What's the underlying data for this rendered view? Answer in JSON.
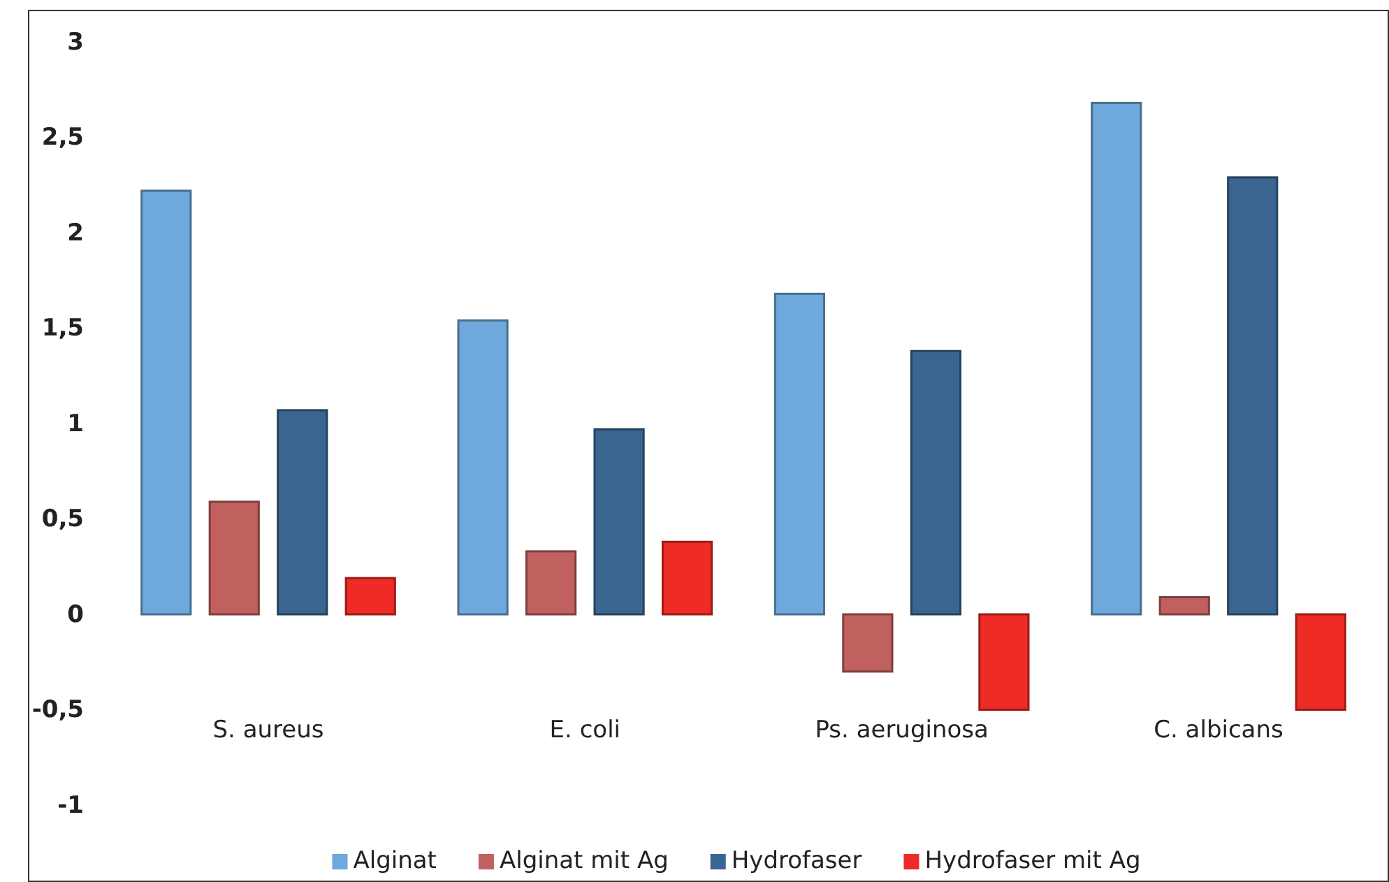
{
  "chart_data": {
    "type": "bar",
    "categories": [
      "S. aureus",
      "E. coli",
      "Ps. aeruginosa",
      "C. albicans"
    ],
    "series": [
      {
        "name": "Alginat",
        "color": "#6fa8dc",
        "values": [
          2.22,
          1.54,
          1.68,
          2.68
        ]
      },
      {
        "name": "Alginat mit Ag",
        "color": "#c0605f",
        "values": [
          0.59,
          0.33,
          -0.3,
          0.09
        ]
      },
      {
        "name": "Hydrofaser",
        "color": "#3a6590",
        "values": [
          1.07,
          0.97,
          1.38,
          2.29
        ]
      },
      {
        "name": "Hydrofaser mit Ag",
        "color": "#ee2b24",
        "values": [
          0.19,
          0.38,
          -0.5,
          -0.5
        ]
      }
    ],
    "ylim": [
      -1,
      3
    ],
    "yticks": [
      {
        "value": -1,
        "label": "-1"
      },
      {
        "value": -0.5,
        "label": "-0,5"
      },
      0,
      {
        "value": 0.5,
        "label": "0,5"
      },
      1,
      {
        "value": 1.5,
        "label": "1,5"
      },
      2,
      {
        "value": 2.5,
        "label": "2,5"
      },
      3
    ],
    "grid": false,
    "legend": "bottom"
  }
}
